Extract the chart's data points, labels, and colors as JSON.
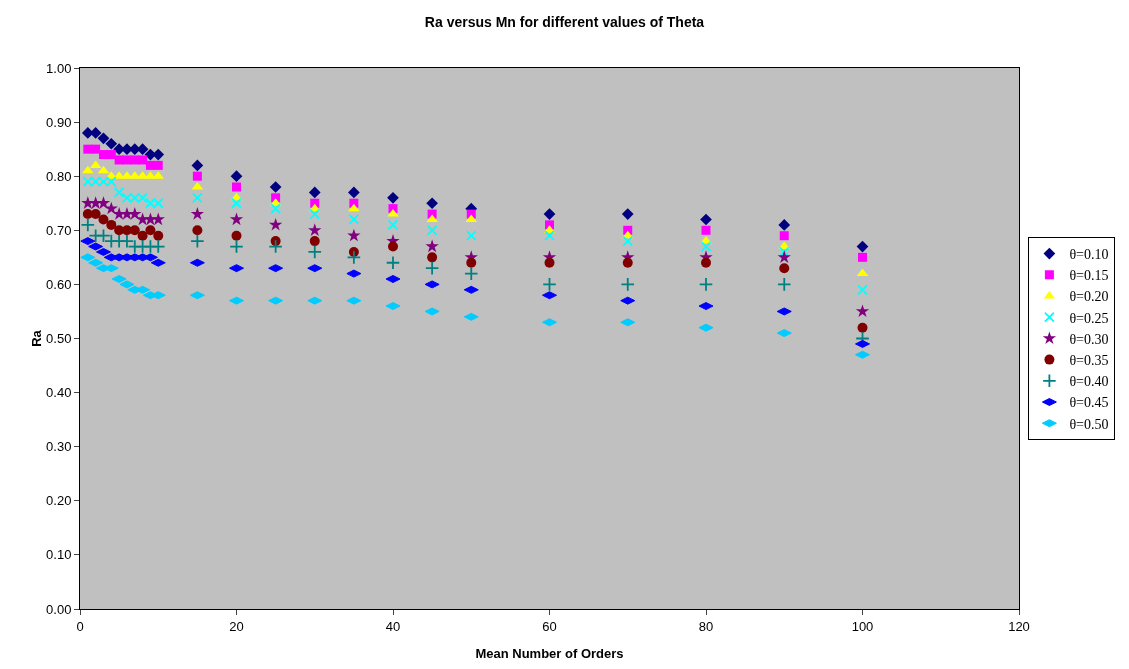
{
  "chart_data": {
    "type": "scatter",
    "title": "Ra versus Mn for different values of Theta",
    "xlabel": "Mean Number of Orders",
    "ylabel": "Ra",
    "x": [
      1,
      2,
      3,
      4,
      5,
      6,
      7,
      8,
      9,
      10,
      15,
      20,
      25,
      30,
      35,
      40,
      45,
      50,
      60,
      70,
      80,
      90,
      100
    ],
    "xlim": [
      0,
      120
    ],
    "xticks": [
      0,
      20,
      40,
      60,
      80,
      100,
      120
    ],
    "ylim": [
      0,
      1
    ],
    "yticks": [
      {
        "value": 0,
        "label": "0.00"
      },
      {
        "value": 0.1,
        "label": "0.10"
      },
      {
        "value": 0.2,
        "label": "0.20"
      },
      {
        "value": 0.3,
        "label": "0.30"
      },
      {
        "value": 0.4,
        "label": "0.40"
      },
      {
        "value": 0.5,
        "label": "0.50"
      },
      {
        "value": 0.6,
        "label": "0.60"
      },
      {
        "value": 0.7,
        "label": "0.70"
      },
      {
        "value": 0.8,
        "label": "0.80"
      },
      {
        "value": 0.9,
        "label": "0.90"
      },
      {
        "value": 1,
        "label": "1.00"
      }
    ],
    "grid": false,
    "legend": "right",
    "series": [
      {
        "name": "θ=0.10",
        "color": "#000080",
        "marker": "diamond",
        "values": [
          0.88,
          0.88,
          0.87,
          0.86,
          0.85,
          0.85,
          0.85,
          0.85,
          0.84,
          0.84,
          0.82,
          0.8,
          0.78,
          0.77,
          0.77,
          0.76,
          0.75,
          0.74,
          0.73,
          0.73,
          0.72,
          0.71,
          0.67
        ]
      },
      {
        "name": "θ=0.15",
        "color": "#ff00ff",
        "marker": "square",
        "values": [
          0.85,
          0.85,
          0.84,
          0.84,
          0.83,
          0.83,
          0.83,
          0.83,
          0.82,
          0.82,
          0.8,
          0.78,
          0.76,
          0.75,
          0.75,
          0.74,
          0.73,
          0.73,
          0.71,
          0.7,
          0.7,
          0.69,
          0.65
        ]
      },
      {
        "name": "θ=0.20",
        "color": "#ffff00",
        "marker": "triangle",
        "values": [
          0.81,
          0.82,
          0.81,
          0.8,
          0.8,
          0.8,
          0.8,
          0.8,
          0.8,
          0.8,
          0.78,
          0.76,
          0.75,
          0.74,
          0.74,
          0.73,
          0.72,
          0.72,
          0.7,
          0.69,
          0.68,
          0.67,
          0.62
        ]
      },
      {
        "name": "θ=0.25",
        "color": "#00ffff",
        "marker": "x",
        "values": [
          0.79,
          0.79,
          0.79,
          0.79,
          0.77,
          0.76,
          0.76,
          0.76,
          0.75,
          0.75,
          0.76,
          0.75,
          0.74,
          0.73,
          0.72,
          0.71,
          0.7,
          0.69,
          0.69,
          0.68,
          0.67,
          0.66,
          0.59
        ]
      },
      {
        "name": "θ=0.30",
        "color": "#800080",
        "marker": "star",
        "values": [
          0.75,
          0.75,
          0.75,
          0.74,
          0.73,
          0.73,
          0.73,
          0.72,
          0.72,
          0.72,
          0.73,
          0.72,
          0.71,
          0.7,
          0.69,
          0.68,
          0.67,
          0.65,
          0.65,
          0.65,
          0.65,
          0.65,
          0.55
        ]
      },
      {
        "name": "θ=0.35",
        "color": "#800000",
        "marker": "circle",
        "values": [
          0.73,
          0.73,
          0.72,
          0.71,
          0.7,
          0.7,
          0.7,
          0.69,
          0.7,
          0.69,
          0.7,
          0.69,
          0.68,
          0.68,
          0.66,
          0.67,
          0.65,
          0.64,
          0.64,
          0.64,
          0.64,
          0.63,
          0.52
        ]
      },
      {
        "name": "θ=0.40",
        "color": "#008080",
        "marker": "cross",
        "values": [
          0.71,
          0.69,
          0.69,
          0.68,
          0.68,
          0.68,
          0.67,
          0.67,
          0.67,
          0.67,
          0.68,
          0.67,
          0.67,
          0.66,
          0.65,
          0.64,
          0.63,
          0.62,
          0.6,
          0.6,
          0.6,
          0.6,
          0.5
        ]
      },
      {
        "name": "θ=0.45",
        "color": "#0000ff",
        "values": [
          0.68,
          0.67,
          0.66,
          0.65,
          0.65,
          0.65,
          0.65,
          0.65,
          0.65,
          0.64,
          0.64,
          0.63,
          0.63,
          0.63,
          0.62,
          0.61,
          0.6,
          0.59,
          0.58,
          0.57,
          0.56,
          0.55,
          0.49
        ]
      },
      {
        "name": "θ=0.50",
        "color": "#00ccff",
        "values": [
          0.65,
          0.64,
          0.63,
          0.63,
          0.61,
          0.6,
          0.59,
          0.59,
          0.58,
          0.58,
          0.58,
          0.57,
          0.57,
          0.57,
          0.57,
          0.56,
          0.55,
          0.54,
          0.53,
          0.53,
          0.52,
          0.51,
          0.47
        ]
      }
    ]
  }
}
